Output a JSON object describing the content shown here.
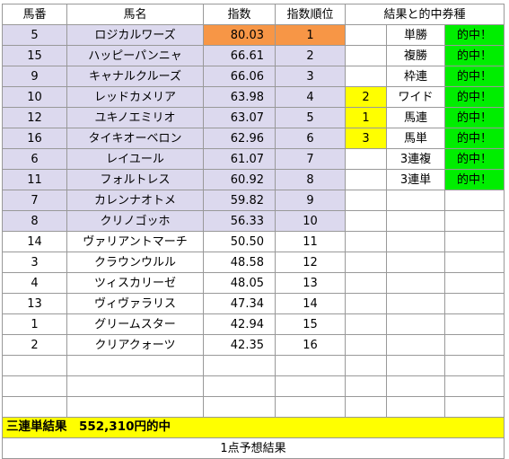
{
  "headers": [
    "馬番",
    "馬名",
    "指数",
    "指数順位",
    "結果と的中券種"
  ],
  "horses": [
    {
      "number": "5",
      "name": "ロジカルワーズ",
      "index": "80.03",
      "rank": "1"
    },
    {
      "number": "15",
      "name": "ハッピーパンニャ",
      "index": "66.61",
      "rank": "2"
    },
    {
      "number": "9",
      "name": "キャナルクルーズ",
      "index": "66.06",
      "rank": "3"
    },
    {
      "number": "10",
      "name": "レッドカメリア",
      "index": "63.98",
      "rank": "4"
    },
    {
      "number": "12",
      "name": "ユキノエミリオ",
      "index": "63.07",
      "rank": "5"
    },
    {
      "number": "16",
      "name": "タイキオーベロン",
      "index": "62.96",
      "rank": "6"
    },
    {
      "number": "6",
      "name": "レイユール",
      "index": "61.07",
      "rank": "7"
    },
    {
      "number": "11",
      "name": "フォルトレス",
      "index": "60.92",
      "rank": "8"
    },
    {
      "number": "7",
      "name": "カレンナオトメ",
      "index": "59.82",
      "rank": "9"
    },
    {
      "number": "8",
      "name": "クリノゴッホ",
      "index": "56.33",
      "rank": "10"
    },
    {
      "number": "14",
      "name": "ヴァリアントマーチ",
      "index": "50.50",
      "rank": "11"
    },
    {
      "number": "3",
      "name": "クラウンウルル",
      "index": "48.58",
      "rank": "12"
    },
    {
      "number": "4",
      "name": "ツィスカリーゼ",
      "index": "48.05",
      "rank": "13"
    },
    {
      "number": "13",
      "name": "ヴィヴァラリス",
      "index": "47.34",
      "rank": "14"
    },
    {
      "number": "1",
      "name": "グリームスター",
      "index": "42.94",
      "rank": "15"
    },
    {
      "number": "2",
      "name": "クリアクォーツ",
      "index": "42.35",
      "rank": "16"
    }
  ],
  "results": [
    {
      "place": "",
      "bet": "単勝",
      "hit": "的中！"
    },
    {
      "place": "",
      "bet": "複勝",
      "hit": "的中！"
    },
    {
      "place": "",
      "bet": "枠連",
      "hit": "的中！"
    },
    {
      "place": "2",
      "bet": "ワイド",
      "hit": "的中！"
    },
    {
      "place": "1",
      "bet": "馬連",
      "hit": "的中！"
    },
    {
      "place": "3",
      "bet": "馬単",
      "hit": "的中！"
    },
    {
      "place": "",
      "bet": "3連複",
      "hit": "的中！"
    },
    {
      "place": "",
      "bet": "3連単",
      "hit": "的中！"
    }
  ],
  "banner": "三連単結果　552,310円的中",
  "footer": "1点予想結果",
  "colors": {
    "highlight_rows": "#dcd9ee",
    "top_index": "#f79646",
    "placing": "#ffff00",
    "hit": "#00ee00",
    "banner": "#ffff00"
  }
}
